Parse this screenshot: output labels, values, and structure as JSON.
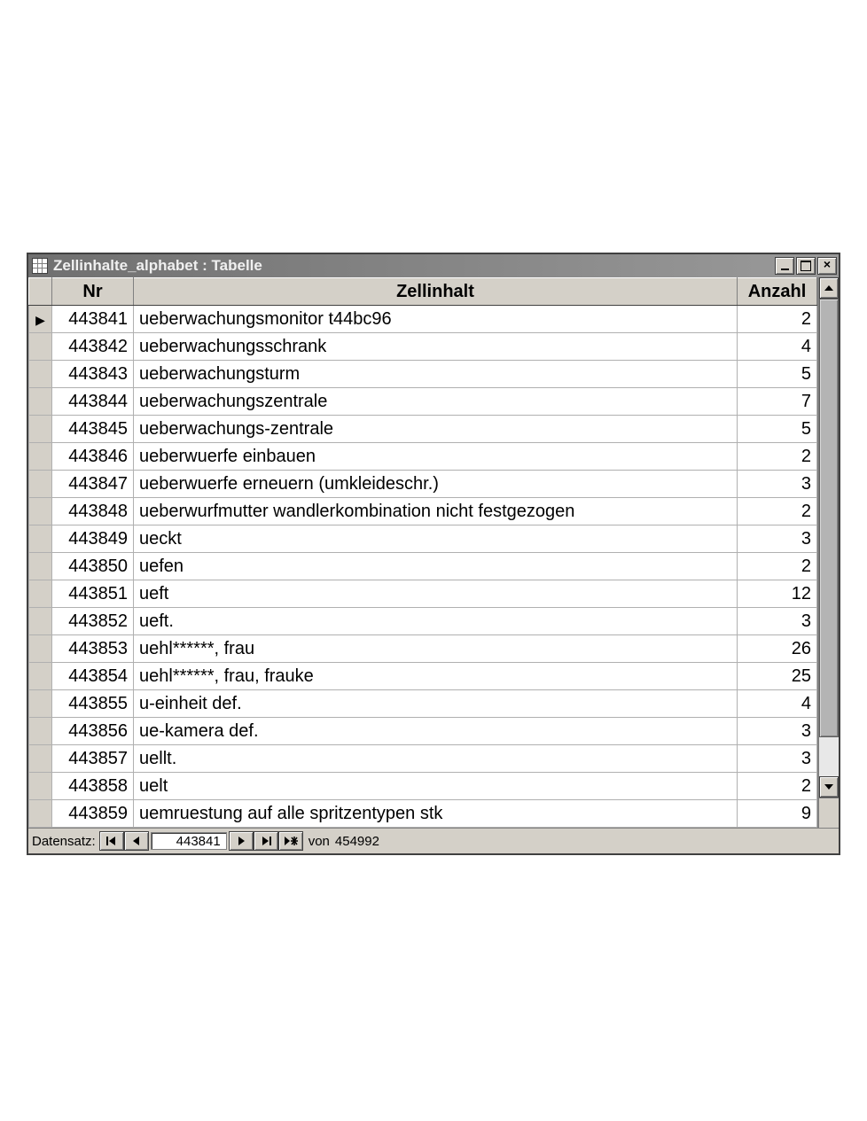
{
  "window": {
    "title": "Zellinhalte_alphabet : Tabelle"
  },
  "columns": {
    "rowsel": "",
    "nr": "Nr",
    "zellinhalt": "Zellinhalt",
    "anzahl": "Anzahl"
  },
  "rows": [
    {
      "nr": "443841",
      "zi": "ueberwachungsmonitor t44bc96",
      "anz": "2",
      "current": true
    },
    {
      "nr": "443842",
      "zi": "ueberwachungsschrank",
      "anz": "4"
    },
    {
      "nr": "443843",
      "zi": "ueberwachungsturm",
      "anz": "5"
    },
    {
      "nr": "443844",
      "zi": "ueberwachungszentrale",
      "anz": "7"
    },
    {
      "nr": "443845",
      "zi": "ueberwachungs-zentrale",
      "anz": "5"
    },
    {
      "nr": "443846",
      "zi": "ueberwuerfe einbauen",
      "anz": "2"
    },
    {
      "nr": "443847",
      "zi": "ueberwuerfe erneuern (umkleideschr.)",
      "anz": "3"
    },
    {
      "nr": "443848",
      "zi": "ueberwurfmutter wandlerkombination nicht festgezogen",
      "anz": "2"
    },
    {
      "nr": "443849",
      "zi": "ueckt",
      "anz": "3"
    },
    {
      "nr": "443850",
      "zi": "uefen",
      "anz": "2"
    },
    {
      "nr": "443851",
      "zi": "ueft",
      "anz": "12"
    },
    {
      "nr": "443852",
      "zi": "ueft.",
      "anz": "3"
    },
    {
      "nr": "443853",
      "zi": "uehl******, frau",
      "anz": "26"
    },
    {
      "nr": "443854",
      "zi": "uehl******, frau, frauke",
      "anz": "25"
    },
    {
      "nr": "443855",
      "zi": "u-einheit def.",
      "anz": "4"
    },
    {
      "nr": "443856",
      "zi": "ue-kamera def.",
      "anz": "3"
    },
    {
      "nr": "443857",
      "zi": "uellt.",
      "anz": "3"
    },
    {
      "nr": "443858",
      "zi": "uelt",
      "anz": "2"
    },
    {
      "nr": "443859",
      "zi": "uemruestung auf alle spritzentypen stk",
      "anz": "9"
    }
  ],
  "nav": {
    "label": "Datensatz:",
    "current": "443841",
    "of_label": "von",
    "total": "454992",
    "first": "|◄",
    "prev": "◄",
    "next": "►",
    "last": "►|",
    "new": "►*"
  },
  "colors": {
    "chrome": "#d4d0c8",
    "titlebar_from": "#707070",
    "titlebar_to": "#9a9a9a",
    "grid_border": "#b0b0b0",
    "text": "#000000",
    "white": "#ffffff"
  }
}
